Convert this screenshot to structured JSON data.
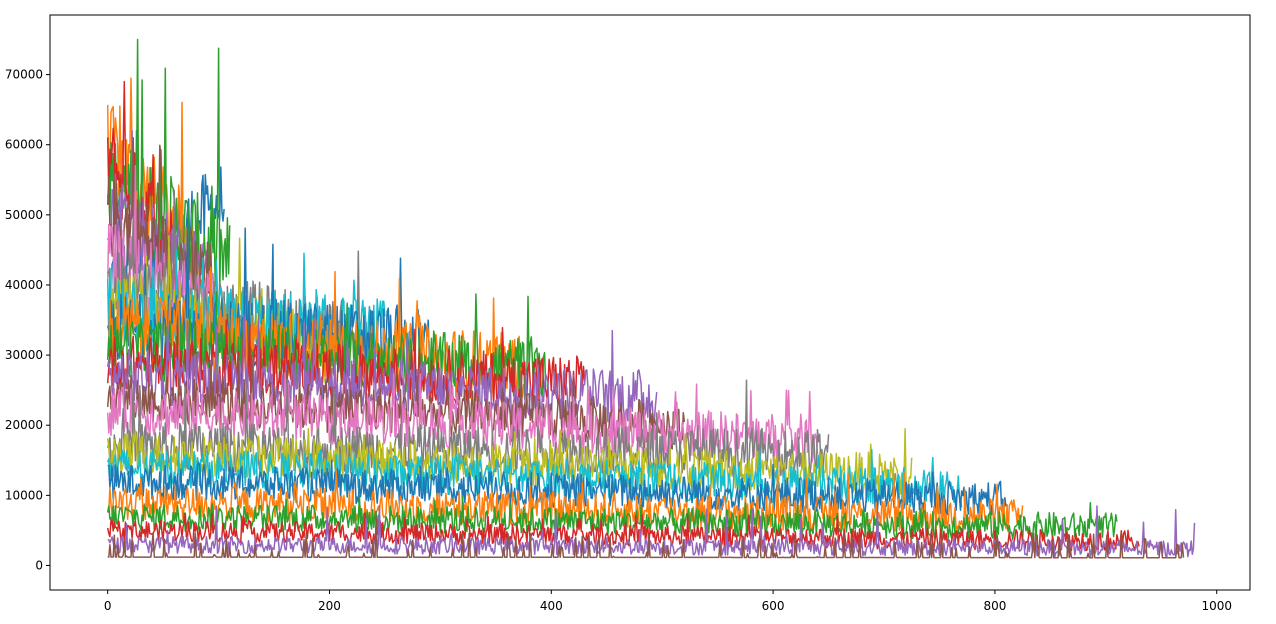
{
  "chart_data": {
    "type": "line",
    "title": "",
    "xlabel": "",
    "ylabel": "",
    "xlim": [
      -52,
      1030
    ],
    "ylim": [
      -3500,
      78500
    ],
    "xticks": [
      0,
      200,
      400,
      600,
      800,
      1000
    ],
    "xtick_labels": [
      "0",
      "200",
      "400",
      "600",
      "800",
      "1000"
    ],
    "yticks": [
      0,
      10000,
      20000,
      30000,
      40000,
      50000,
      60000,
      70000
    ],
    "ytick_labels": [
      "0",
      "10000",
      "20000",
      "30000",
      "40000",
      "50000",
      "60000",
      "70000"
    ],
    "grid": false,
    "legend": "none",
    "palette": [
      "#1f77b4",
      "#ff7f0e",
      "#2ca02c",
      "#d62728",
      "#9467bd",
      "#8c564b",
      "#e377c2",
      "#7f7f7f",
      "#bcbd22",
      "#17becf"
    ],
    "series": [
      {
        "color": "#1f77b4",
        "length": 105,
        "start": 40000,
        "end": 52000,
        "noise": 6000,
        "peak": 62000
      },
      {
        "color": "#ff7f0e",
        "length": 85,
        "start": 60000,
        "end": 44000,
        "noise": 6500,
        "peak": 69500
      },
      {
        "color": "#2ca02c",
        "length": 110,
        "start": 55000,
        "end": 43000,
        "noise": 7000,
        "peak": 75000
      },
      {
        "color": "#d62728",
        "length": 60,
        "start": 58000,
        "end": 45000,
        "noise": 6500,
        "peak": 69000
      },
      {
        "color": "#9467bd",
        "length": 90,
        "start": 52000,
        "end": 40000,
        "noise": 6000,
        "peak": 62000
      },
      {
        "color": "#8c564b",
        "length": 95,
        "start": 50000,
        "end": 40000,
        "noise": 6000,
        "peak": 61000
      },
      {
        "color": "#e377c2",
        "length": 100,
        "start": 44000,
        "end": 36000,
        "noise": 5500,
        "peak": 57000
      },
      {
        "color": "#7f7f7f",
        "length": 240,
        "start": 40000,
        "end": 32000,
        "noise": 5000,
        "peak": 53500
      },
      {
        "color": "#bcbd22",
        "length": 220,
        "start": 38000,
        "end": 30000,
        "noise": 5000,
        "peak": 47000
      },
      {
        "color": "#17becf",
        "length": 250,
        "start": 36000,
        "end": 33000,
        "noise": 5000,
        "peak": 45000
      },
      {
        "color": "#1f77b4",
        "length": 290,
        "start": 34000,
        "end": 32000,
        "noise": 5000,
        "peak": 49500
      },
      {
        "color": "#ff7f0e",
        "length": 375,
        "start": 34000,
        "end": 28000,
        "noise": 5000,
        "peak": 42500
      },
      {
        "color": "#2ca02c",
        "length": 395,
        "start": 31000,
        "end": 28000,
        "noise": 4500,
        "peak": 39000
      },
      {
        "color": "#d62728",
        "length": 430,
        "start": 29000,
        "end": 26000,
        "noise": 4000,
        "peak": 35000
      },
      {
        "color": "#9467bd",
        "length": 495,
        "start": 27000,
        "end": 24000,
        "noise": 4000,
        "peak": 35500
      },
      {
        "color": "#8c564b",
        "length": 520,
        "start": 24000,
        "end": 20000,
        "noise": 3500,
        "peak": 30000
      },
      {
        "color": "#e377c2",
        "length": 640,
        "start": 22000,
        "end": 18000,
        "noise": 3500,
        "peak": 27500
      },
      {
        "color": "#7f7f7f",
        "length": 650,
        "start": 17000,
        "end": 16000,
        "noise": 3500,
        "peak": 26500
      },
      {
        "color": "#bcbd22",
        "length": 725,
        "start": 16000,
        "end": 13000,
        "noise": 3000,
        "peak": 19500
      },
      {
        "color": "#17becf",
        "length": 770,
        "start": 14000,
        "end": 11000,
        "noise": 2800,
        "peak": 16500
      },
      {
        "color": "#1f77b4",
        "length": 810,
        "start": 12000,
        "end": 9500,
        "noise": 2500,
        "peak": 15000
      },
      {
        "color": "#ff7f0e",
        "length": 825,
        "start": 9000,
        "end": 7000,
        "noise": 2500,
        "peak": 13500
      },
      {
        "color": "#2ca02c",
        "length": 910,
        "start": 7000,
        "end": 5500,
        "noise": 2000,
        "peak": 10000
      },
      {
        "color": "#d62728",
        "length": 930,
        "start": 5000,
        "end": 3500,
        "noise": 1500,
        "peak": 7500
      },
      {
        "color": "#9467bd",
        "length": 980,
        "start": 3000,
        "end": 2400,
        "noise": 1200,
        "peak": 8500
      },
      {
        "color": "#8c564b",
        "length": 970,
        "start": 1200,
        "end": 1100,
        "noise": 0,
        "peak": 7000
      }
    ]
  }
}
